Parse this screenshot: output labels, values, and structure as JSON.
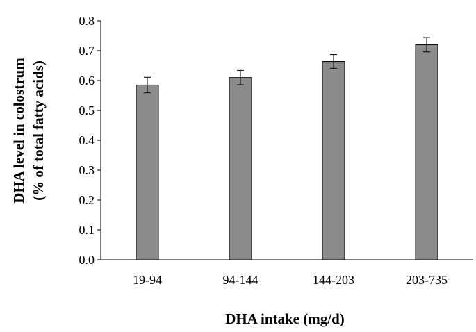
{
  "chart_data": {
    "type": "bar",
    "title": "",
    "xlabel": "DHA intake (mg/d)",
    "ylabel_lines": [
      "DHA level in colostrum",
      "(% of total fatty acids)"
    ],
    "categories": [
      "19-94",
      "94-144",
      "144-203",
      "203-735"
    ],
    "values": [
      0.585,
      0.61,
      0.664,
      0.72
    ],
    "errors": [
      0.026,
      0.024,
      0.023,
      0.024
    ],
    "ylim": [
      0,
      0.8
    ],
    "yticks": [
      "0.0",
      "0.1",
      "0.2",
      "0.3",
      "0.4",
      "0.5",
      "0.6",
      "0.7",
      "0.8"
    ],
    "grid": false,
    "bar_color": "#8c8c8c",
    "bar_edge_color": "#000000"
  }
}
